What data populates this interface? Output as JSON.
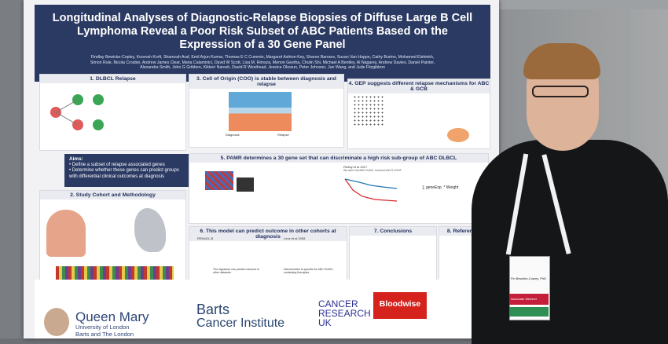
{
  "poster": {
    "title": "Longitudinal Analyses of Diagnostic-Relapse Biopsies of Diffuse Large B Cell Lymphoma Reveal a Poor Risk Subset of ABC Patients Based on the Expression of a 30 Gene Panel",
    "authors": "Findlay Bewicke-Copley, Koorosh Korfi, Shamzah Araf, Emil Arjun Kumar, Thomas E C Cummin, Margaret Ashton-Key, Sharon Barrans, Suzan Van Hoppe, Cathy Burton, Mohamed Elshiekh, Simon Rule, Nicola Crosbie, Andrew James Clear, Maria Calaminici, David W Scott, Lisa M. Rimsza, Menon Geetha, Chulin Shi, Michael A Bentley, Al Nagarey, Andrew Davies, Daniel Painter, Alexandra Smith, John G Gribben, Kikkeri Naresh, David R Westhead, Jessica Okosun, Peter Johnson, Jun Wang, and Jude Fitzgibbon",
    "sections": {
      "s1": "1. DLBCL Relapse",
      "s2": "2. Study Cohort and Methodology",
      "s3": "3. Cell of Origin (COO) is stable between diagnosis and relapse",
      "s4": "4. GEP suggests different relapse mechanisms for ABC & GCB",
      "s5": "5. PAMR determines a 30 gene set that can discriminate a high risk sub-group of ABC DLBCL",
      "s6": "6. This model can predict outcome in other cohorts at diagnosis",
      "s7": "7. Conclusions",
      "s8": "8. References"
    },
    "aims": {
      "heading": "Aims:",
      "item1": "Define a subset of relapse associated genes",
      "item2": "Determine whether these genes can predict groups with differential clinical outcomes at diagnosis"
    },
    "figure_labels": {
      "diagnosis": "Diagnosis",
      "relapse": "Relapse",
      "reddy": "Reddy et al 2017",
      "reddy_note": "We were Not ABC DLBCL Involved with R-CHOP",
      "rembl": "REMoDL-B",
      "lenz": "Lenz et al 2008",
      "sig1": "The signature can predict outcome in other datasets",
      "sig2": "Discriminator is specific for ABC DLBCL containing therapies",
      "formula": "∑ geneExp. * Weight"
    },
    "logos": {
      "qm_name": "Queen Mary",
      "qm_sub1": "University of London",
      "qm_sub2": "Barts and The London",
      "barts1": "Barts",
      "barts2": "Cancer Institute",
      "cru1": "CANCER",
      "cru2": "RESEARCH",
      "cru3": "UK",
      "bloodwise": "Bloodwise"
    },
    "badge": {
      "name": "Fin Bewicke-Copley, PhD",
      "role": "Associate Member"
    }
  }
}
